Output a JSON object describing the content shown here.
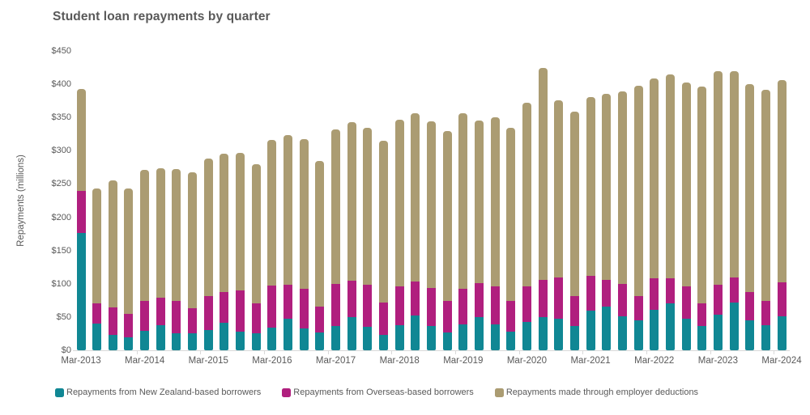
{
  "header": {
    "title": "Student loan repayments by quarter",
    "title_color": "#595959"
  },
  "y_axis": {
    "label": "Repayments (millions)",
    "tick_labels": [
      "$0",
      "$50",
      "$100",
      "$150",
      "$200",
      "$250",
      "$300",
      "$350",
      "$400",
      "$450"
    ]
  },
  "x_axis": {
    "tick_labels": [
      "Mar-2013",
      "Mar-2014",
      "Mar-2015",
      "Mar-2016",
      "Mar-2017",
      "Mar-2018",
      "Mar-2019",
      "Mar-2020",
      "Mar-2021",
      "Mar-2022",
      "Mar-2023",
      "Mar-2024"
    ],
    "label_every_n_bars": 4
  },
  "legend": {
    "items": [
      {
        "label": "Repayments from New Zealand-based borrowers",
        "color": "#108794"
      },
      {
        "label": "Repayments from Overseas-based borrowers",
        "color": "#B01F7E"
      },
      {
        "label": "Repayments made through employer deductions",
        "color": "#AB9C72"
      }
    ]
  },
  "colors": {
    "text": "#595959",
    "axis_line": "#D9D9D9",
    "background": "#FFFFFF"
  },
  "chart_data": {
    "type": "bar",
    "stacked": true,
    "title": "Student loan repayments by quarter",
    "xlabel": "",
    "ylabel": "Repayments (millions)",
    "ylim": [
      0,
      450
    ],
    "y_tick_step": 50,
    "grid": false,
    "legend_position": "bottom",
    "categories": [
      "Mar-2013",
      "Jun-2013",
      "Sep-2013",
      "Dec-2013",
      "Mar-2014",
      "Jun-2014",
      "Sep-2014",
      "Dec-2014",
      "Mar-2015",
      "Jun-2015",
      "Sep-2015",
      "Dec-2015",
      "Mar-2016",
      "Jun-2016",
      "Sep-2016",
      "Dec-2016",
      "Mar-2017",
      "Jun-2017",
      "Sep-2017",
      "Dec-2017",
      "Mar-2018",
      "Jun-2018",
      "Sep-2018",
      "Dec-2018",
      "Mar-2019",
      "Jun-2019",
      "Sep-2019",
      "Dec-2019",
      "Mar-2020",
      "Jun-2020",
      "Sep-2020",
      "Dec-2020",
      "Mar-2021",
      "Jun-2021",
      "Sep-2021",
      "Dec-2021",
      "Mar-2022",
      "Jun-2022",
      "Sep-2022",
      "Dec-2022",
      "Mar-2023",
      "Jun-2023",
      "Sep-2023",
      "Dec-2023",
      "Mar-2024"
    ],
    "series": [
      {
        "name": "Repayments from New Zealand-based borrowers",
        "color": "#108794",
        "values": [
          176,
          40,
          23,
          19,
          29,
          38,
          26,
          25,
          30,
          41,
          28,
          25,
          34,
          47,
          33,
          27,
          37,
          50,
          35,
          23,
          38,
          52,
          37,
          27,
          39,
          50,
          39,
          28,
          42,
          50,
          47,
          37,
          60,
          66,
          51,
          45,
          61,
          71,
          47,
          37,
          53,
          72,
          45,
          38,
          51
        ]
      },
      {
        "name": "Repayments from Overseas-based borrowers",
        "color": "#B01F7E",
        "values": [
          64,
          30,
          42,
          36,
          45,
          41,
          48,
          38,
          52,
          47,
          62,
          45,
          63,
          52,
          59,
          39,
          63,
          55,
          64,
          49,
          58,
          52,
          57,
          47,
          53,
          51,
          57,
          46,
          54,
          56,
          63,
          45,
          52,
          40,
          49,
          37,
          47,
          37,
          49,
          33,
          45,
          37,
          42,
          36,
          51
        ]
      },
      {
        "name": "Repayments made through employer deductions",
        "color": "#AB9C72",
        "values": [
          153,
          173,
          190,
          188,
          197,
          195,
          198,
          205,
          206,
          207,
          207,
          210,
          219,
          224,
          226,
          219,
          232,
          238,
          236,
          243,
          251,
          252,
          250,
          256,
          265,
          245,
          254,
          261,
          276,
          319,
          266,
          277,
          269,
          279,
          289,
          316,
          301,
          307,
          306,
          327,
          322,
          311,
          313,
          318,
          304
        ]
      }
    ]
  }
}
